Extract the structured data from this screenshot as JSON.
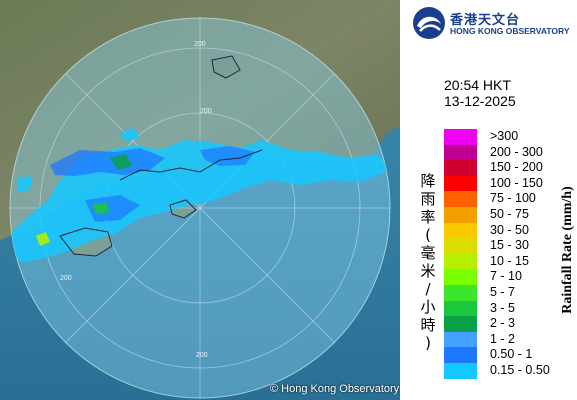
{
  "logo": {
    "zh": "香港天文台",
    "en": "HONG KONG OBSERVATORY"
  },
  "timestamp": {
    "time": "20:54 HKT",
    "date": "13-12-2025"
  },
  "legend": {
    "title_zh": "降雨率(毫米/小時)",
    "title_en": "Rainfall Rate (mm/h)",
    "items": [
      {
        "label": ">300",
        "color": "#f000f0"
      },
      {
        "label": "200 - 300",
        "color": "#c00090"
      },
      {
        "label": "150 - 200",
        "color": "#d00030"
      },
      {
        "label": "100 - 150",
        "color": "#ff0000"
      },
      {
        "label": "75 - 100",
        "color": "#ff6000"
      },
      {
        "label": "50 - 75",
        "color": "#f2a000"
      },
      {
        "label": "30 - 50",
        "color": "#fac800"
      },
      {
        "label": "15 - 30",
        "color": "#dcdc00"
      },
      {
        "label": "10 - 15",
        "color": "#b4f000"
      },
      {
        "label": "7 - 10",
        "color": "#78ff00"
      },
      {
        "label": "5 - 7",
        "color": "#3ce628"
      },
      {
        "label": "3 - 5",
        "color": "#19c83c"
      },
      {
        "label": "2 - 3",
        "color": "#0aa048"
      },
      {
        "label": "1 - 2",
        "color": "#46a0ff"
      },
      {
        "label": "0.50 - 1",
        "color": "#1e78ff"
      },
      {
        "label": "0.15 - 0.50",
        "color": "#14c8ff"
      }
    ]
  },
  "map": {
    "range_labels": [
      "200",
      "200",
      "200",
      "200"
    ],
    "copyright": "© Hong Kong Observatory"
  }
}
